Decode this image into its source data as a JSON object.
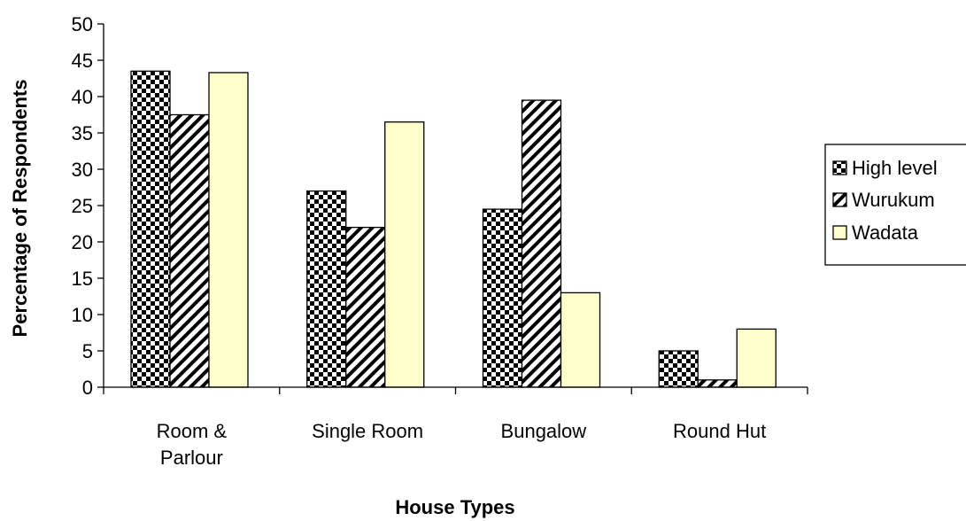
{
  "chart_data": {
    "type": "bar",
    "title": "",
    "xlabel": "House Types",
    "ylabel": "Percentage of Respondents",
    "categories": [
      [
        "Room &",
        "Parlour"
      ],
      [
        "Single Room"
      ],
      [
        "Bungalow"
      ],
      [
        "Round Hut"
      ]
    ],
    "series": [
      {
        "name": "High level",
        "values": [
          43.5,
          27,
          24.5,
          5
        ],
        "pattern": "checker"
      },
      {
        "name": "Wurukum",
        "values": [
          37.5,
          22,
          39.5,
          1
        ],
        "pattern": "diagonal"
      },
      {
        "name": "Wadata",
        "values": [
          43.3,
          36.5,
          13,
          8
        ],
        "pattern": "solid"
      }
    ],
    "ylim": [
      0,
      50
    ],
    "yticks": [
      0,
      5,
      10,
      15,
      20,
      25,
      30,
      35,
      40,
      45,
      50
    ],
    "grid": false,
    "legend": "right",
    "colors": {
      "wadata_fill": "#FFFFCC",
      "pattern_dark": "#000000",
      "pattern_light": "#FFFFFF"
    }
  }
}
